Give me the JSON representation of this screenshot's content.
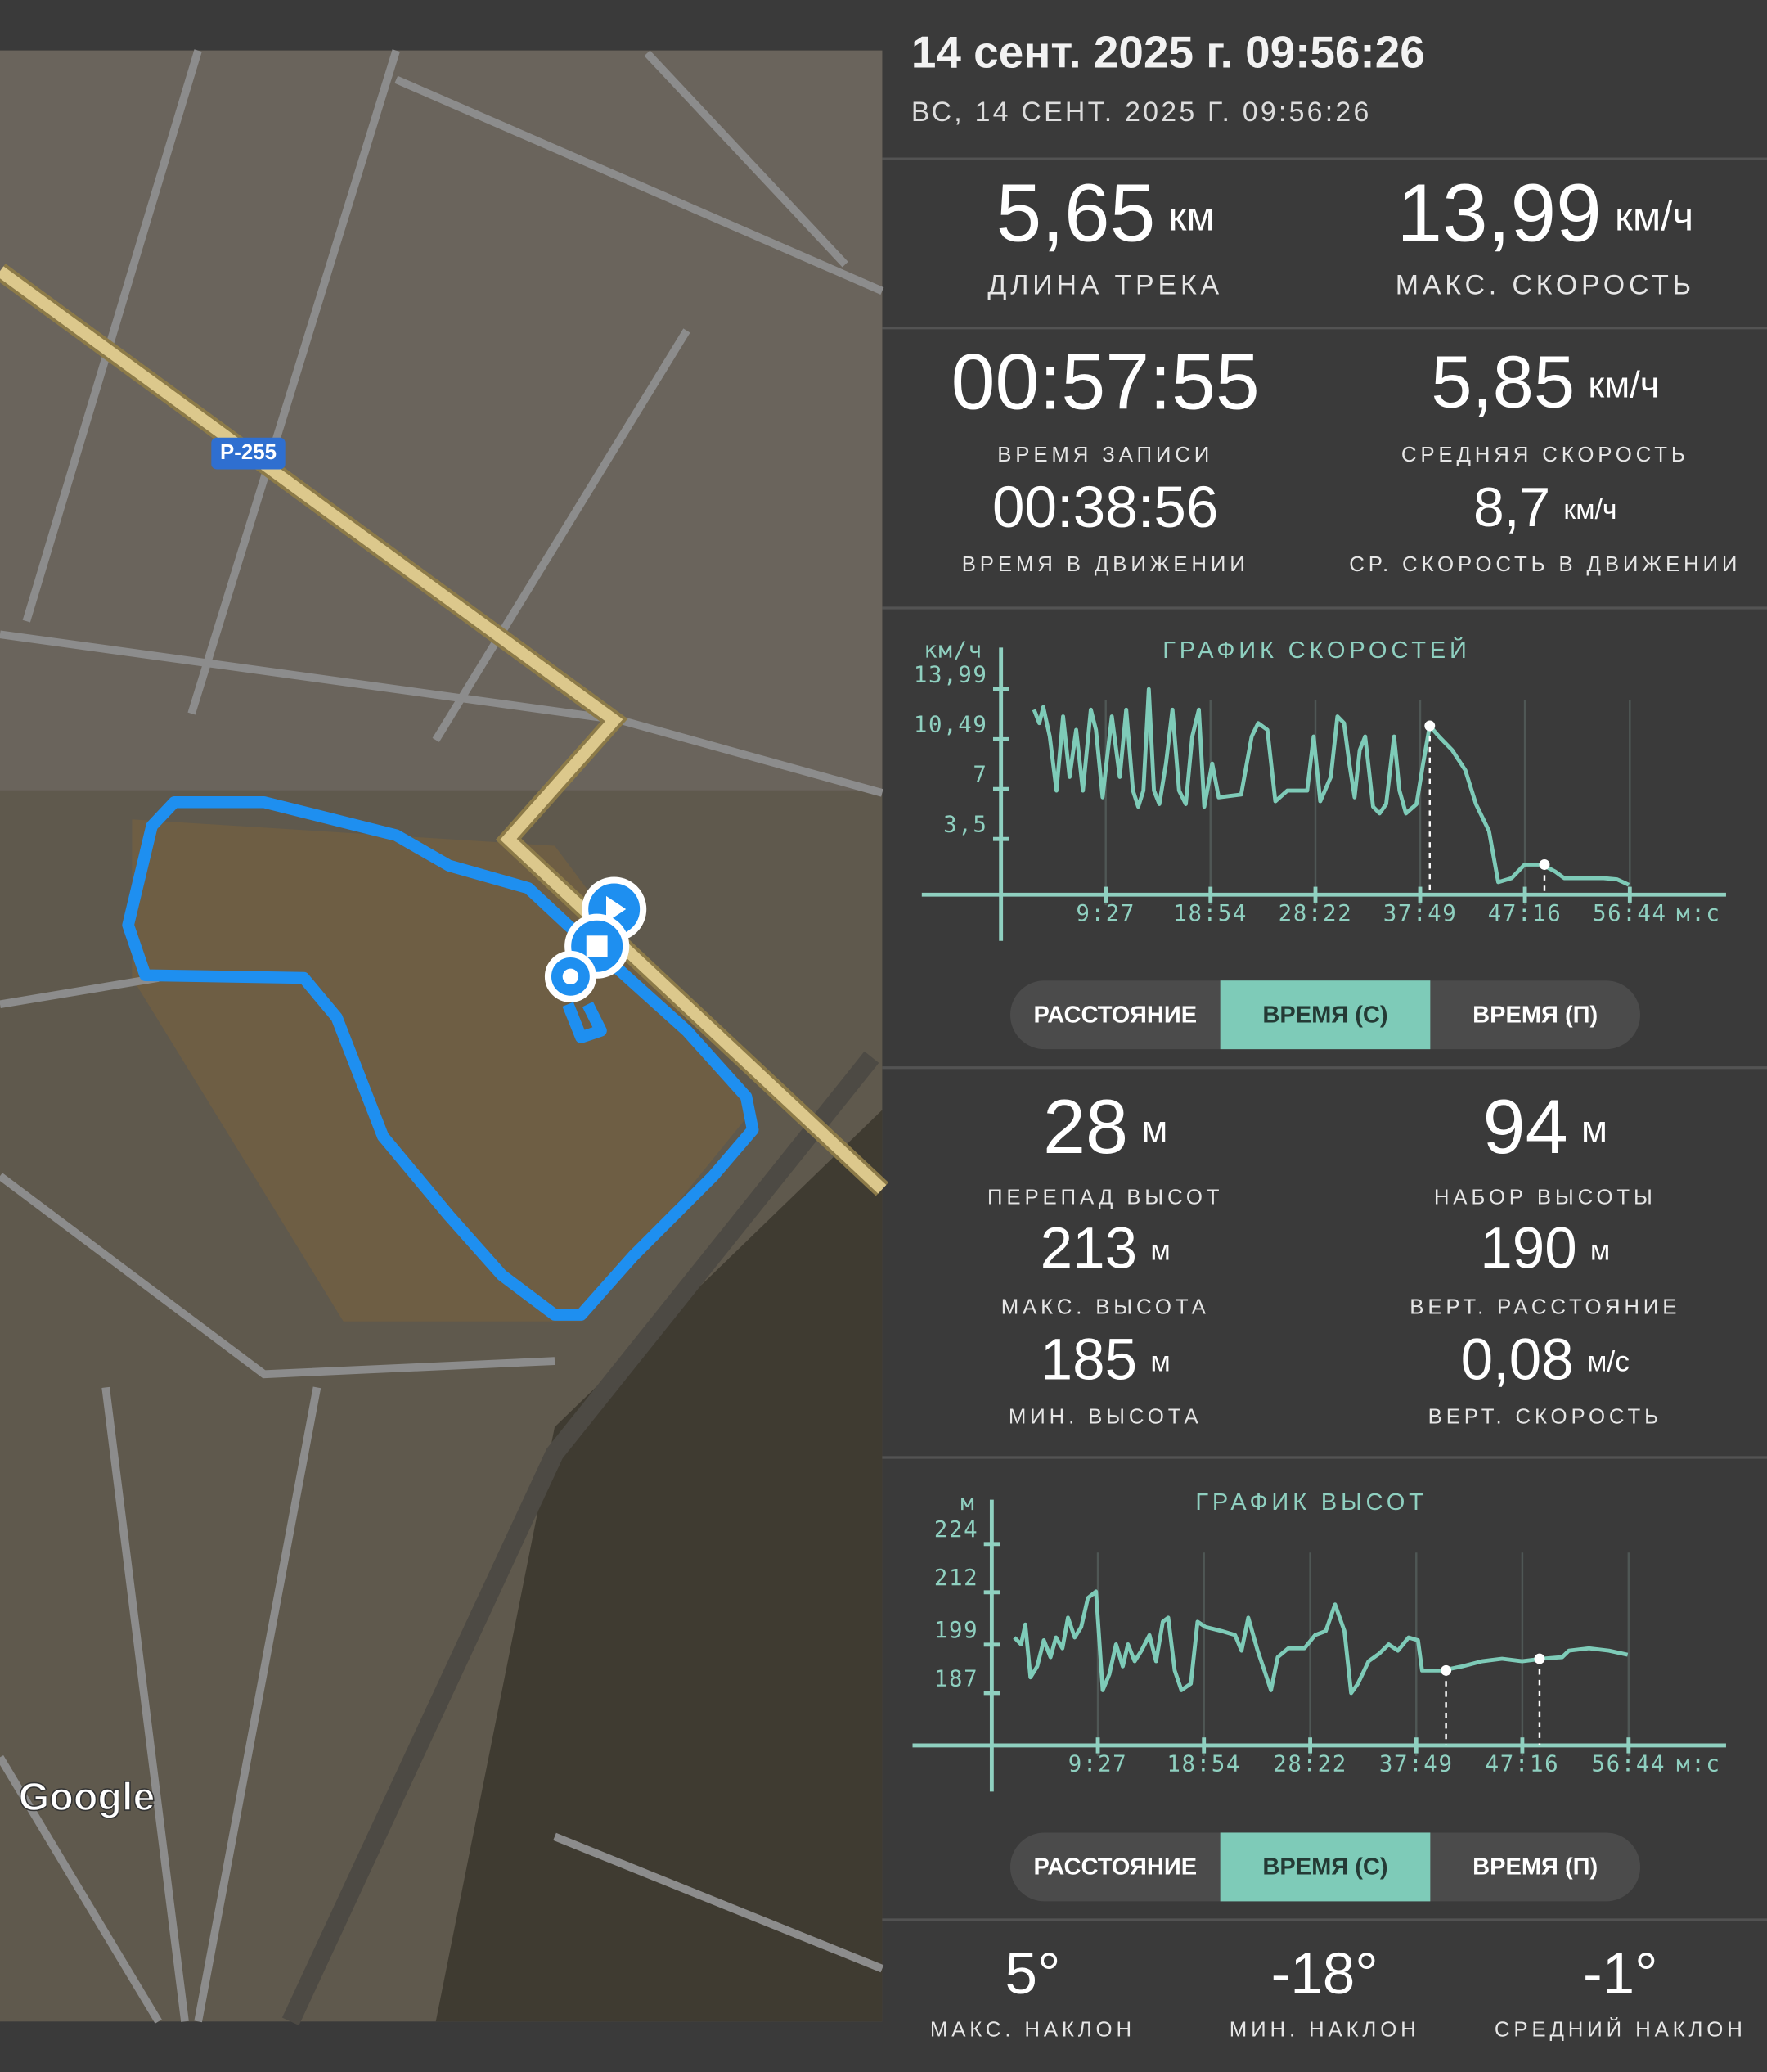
{
  "header": {
    "title": "14 сент. 2025 г. 09:56:26",
    "subtitle": "ВС, 14 СЕНТ. 2025 Г. 09:56:26"
  },
  "map": {
    "road_label": "Р-255",
    "attribution": "Google"
  },
  "summary": [
    {
      "value": "5,65",
      "unit": "км",
      "label": "ДЛИНА ТРЕКА"
    },
    {
      "value": "13,99",
      "unit": "км/ч",
      "label": "МАКС. СКОРОСТЬ"
    },
    {
      "value": "00:57:55",
      "label": "ВРЕМЯ ЗАПИСИ"
    },
    {
      "value": "5,85",
      "unit": "км/ч",
      "label": "СРЕДНЯЯ СКОРОСТЬ"
    },
    {
      "value": "00:38:56",
      "label": "ВРЕМЯ В ДВИЖЕНИИ"
    },
    {
      "value": "8,7",
      "unit": "км/ч",
      "label": "СР. СКОРОСТЬ В ДВИЖЕНИИ"
    }
  ],
  "speed_tabs": {
    "labels": [
      "РАССТОЯНИЕ",
      "ВРЕМЯ (С)",
      "ВРЕМЯ (П)"
    ],
    "active": 1
  },
  "elevation_stats": [
    {
      "value": "28",
      "unit": "м",
      "label": "ПЕРЕПАД ВЫСОТ"
    },
    {
      "value": "94",
      "unit": "м",
      "label": "НАБОР ВЫСОТЫ"
    },
    {
      "value": "213",
      "unit": "м",
      "label": "МАКС. ВЫСОТА"
    },
    {
      "value": "190",
      "unit": "м",
      "label": "ВЕРТ. РАССТОЯНИЕ"
    },
    {
      "value": "185",
      "unit": "м",
      "label": "МИН. ВЫСОТА"
    },
    {
      "value": "0,08",
      "unit": "м/с",
      "label": "ВЕРТ. СКОРОСТЬ"
    }
  ],
  "elevation_tabs": {
    "labels": [
      "РАССТОЯНИЕ",
      "ВРЕМЯ (С)",
      "ВРЕМЯ (П)"
    ],
    "active": 1
  },
  "slope_stats": [
    {
      "value": "5°",
      "label": "МАКС. НАКЛОН"
    },
    {
      "value": "-18°",
      "label": "МИН. НАКЛОН"
    },
    {
      "value": "-1°",
      "label": "СРЕДНИЙ НАКЛОН"
    }
  ],
  "chart_data": [
    {
      "type": "line",
      "title": "ГРАФИК СКОРОСТЕЙ",
      "ylabel": "км/ч",
      "xlabel": "м:с",
      "color": "#7ecbb8",
      "x": [
        179,
        207,
        229,
        264,
        300,
        336,
        371,
        407,
        443,
        486,
        514,
        550,
        600,
        643,
        678,
        714,
        743,
        771,
        800,
        828,
        857,
        893,
        928,
        964,
        1000,
        1035,
        1071,
        1100,
        1143,
        1178,
        1300,
        1357,
        1392,
        1442,
        1485,
        1550,
        1657,
        1692,
        1728,
        1785,
        1821,
        1857,
        1885,
        1914,
        1942,
        1971,
        2014,
        2049,
        2085,
        2128,
        2157,
        2192,
        2249,
        2285,
        2321,
        2371,
        2442,
        2514,
        2571,
        2642,
        2692,
        2764,
        2835,
        2928,
        2999,
        3049,
        3156,
        3263,
        3335,
        3399
      ],
      "values": [
        12.55,
        11.61,
        12.74,
        10.67,
        6.89,
        12.08,
        7.84,
        11.14,
        6.89,
        12.55,
        11.14,
        6.42,
        12.08,
        7.84,
        12.55,
        6.89,
        5.76,
        6.89,
        13.99,
        6.89,
        5.95,
        8.78,
        12.55,
        6.89,
        5.95,
        10.67,
        12.55,
        5.76,
        8.78,
        6.42,
        6.61,
        10.67,
        11.61,
        11.14,
        6.14,
        6.89,
        6.89,
        10.67,
        6.14,
        7.84,
        12.08,
        11.61,
        8.78,
        6.42,
        9.72,
        10.67,
        5.76,
        5.29,
        5.95,
        10.67,
        6.89,
        5.29,
        5.95,
        8.78,
        11.42,
        10.67,
        9.72,
        8.31,
        5.95,
        4.06,
        0.48,
        0.76,
        1.71,
        1.71,
        1.23,
        0.76,
        0.76,
        0.76,
        0.67,
        0.29
      ],
      "markers": [
        {
          "x": 2321,
          "y": 11.42
        },
        {
          "x": 2942,
          "y": 1.71
        }
      ],
      "xlim": [
        0,
        3925
      ],
      "ylim": [
        -0.4,
        16.9
      ],
      "xticks": [
        {
          "value": 567,
          "label": "9:27"
        },
        {
          "value": 1134,
          "label": "18:54"
        },
        {
          "value": 1702,
          "label": "28:22"
        },
        {
          "value": 2269,
          "label": "37:49"
        },
        {
          "value": 2836,
          "label": "47:16"
        },
        {
          "value": 3404,
          "label": "56:44"
        }
      ],
      "yticks": [
        {
          "value": 3.5,
          "label": "3,5"
        },
        7,
        {
          "value": 10.49,
          "label": "10,49"
        },
        {
          "value": 13.99,
          "label": "13,99"
        }
      ]
    },
    {
      "type": "line",
      "title": "ГРАФИК ВЫСОТ",
      "ylabel": "м",
      "xlabel": "м:с",
      "color": "#7ecbb8",
      "x": [
        121,
        157,
        179,
        207,
        243,
        278,
        314,
        343,
        378,
        407,
        443,
        478,
        514,
        557,
        593,
        628,
        664,
        700,
        728,
        764,
        800,
        843,
        878,
        914,
        943,
        978,
        1014,
        1064,
        1100,
        1143,
        1228,
        1300,
        1335,
        1371,
        1421,
        1457,
        1492,
        1528,
        1585,
        1671,
        1728,
        1785,
        1835,
        1885,
        1921,
        1957,
        2014,
        2071,
        2121,
        2171,
        2228,
        2278,
        2300,
        2407,
        2514,
        2621,
        2728,
        2835,
        2942,
        3049,
        3085,
        3192,
        3299,
        3399
      ],
      "values": [
        200.8,
        199.1,
        204.0,
        190.9,
        193.6,
        200.1,
        195.9,
        200.8,
        198.1,
        205.7,
        200.8,
        203.4,
        210.6,
        212.2,
        187.7,
        191.6,
        199.1,
        193.6,
        199.1,
        194.9,
        197.5,
        201.4,
        194.9,
        204.7,
        205.7,
        192.6,
        187.7,
        189.3,
        204.7,
        203.4,
        202.4,
        201.4,
        197.5,
        205.7,
        197.5,
        192.6,
        187.7,
        195.9,
        198.1,
        198.1,
        201.4,
        202.4,
        209.0,
        202.4,
        187.0,
        189.3,
        194.9,
        196.8,
        199.1,
        197.5,
        200.8,
        200.1,
        192.6,
        192.6,
        193.6,
        194.9,
        195.5,
        194.9,
        195.5,
        195.9,
        197.5,
        198.1,
        197.5,
        196.5
      ],
      "markers": [
        {
          "x": 2428,
          "y": 192.6
        },
        {
          "x": 2928,
          "y": 195.5
        }
      ],
      "xlim": [
        0,
        3925
      ],
      "ylim": [
        174,
        235
      ],
      "xticks": [
        {
          "value": 567,
          "label": "9:27"
        },
        {
          "value": 1134,
          "label": "18:54"
        },
        {
          "value": 1702,
          "label": "28:22"
        },
        {
          "value": 2269,
          "label": "37:49"
        },
        {
          "value": 2836,
          "label": "47:16"
        },
        {
          "value": 3404,
          "label": "56:44"
        }
      ],
      "yticks": [
        187,
        199,
        212,
        224
      ]
    }
  ]
}
